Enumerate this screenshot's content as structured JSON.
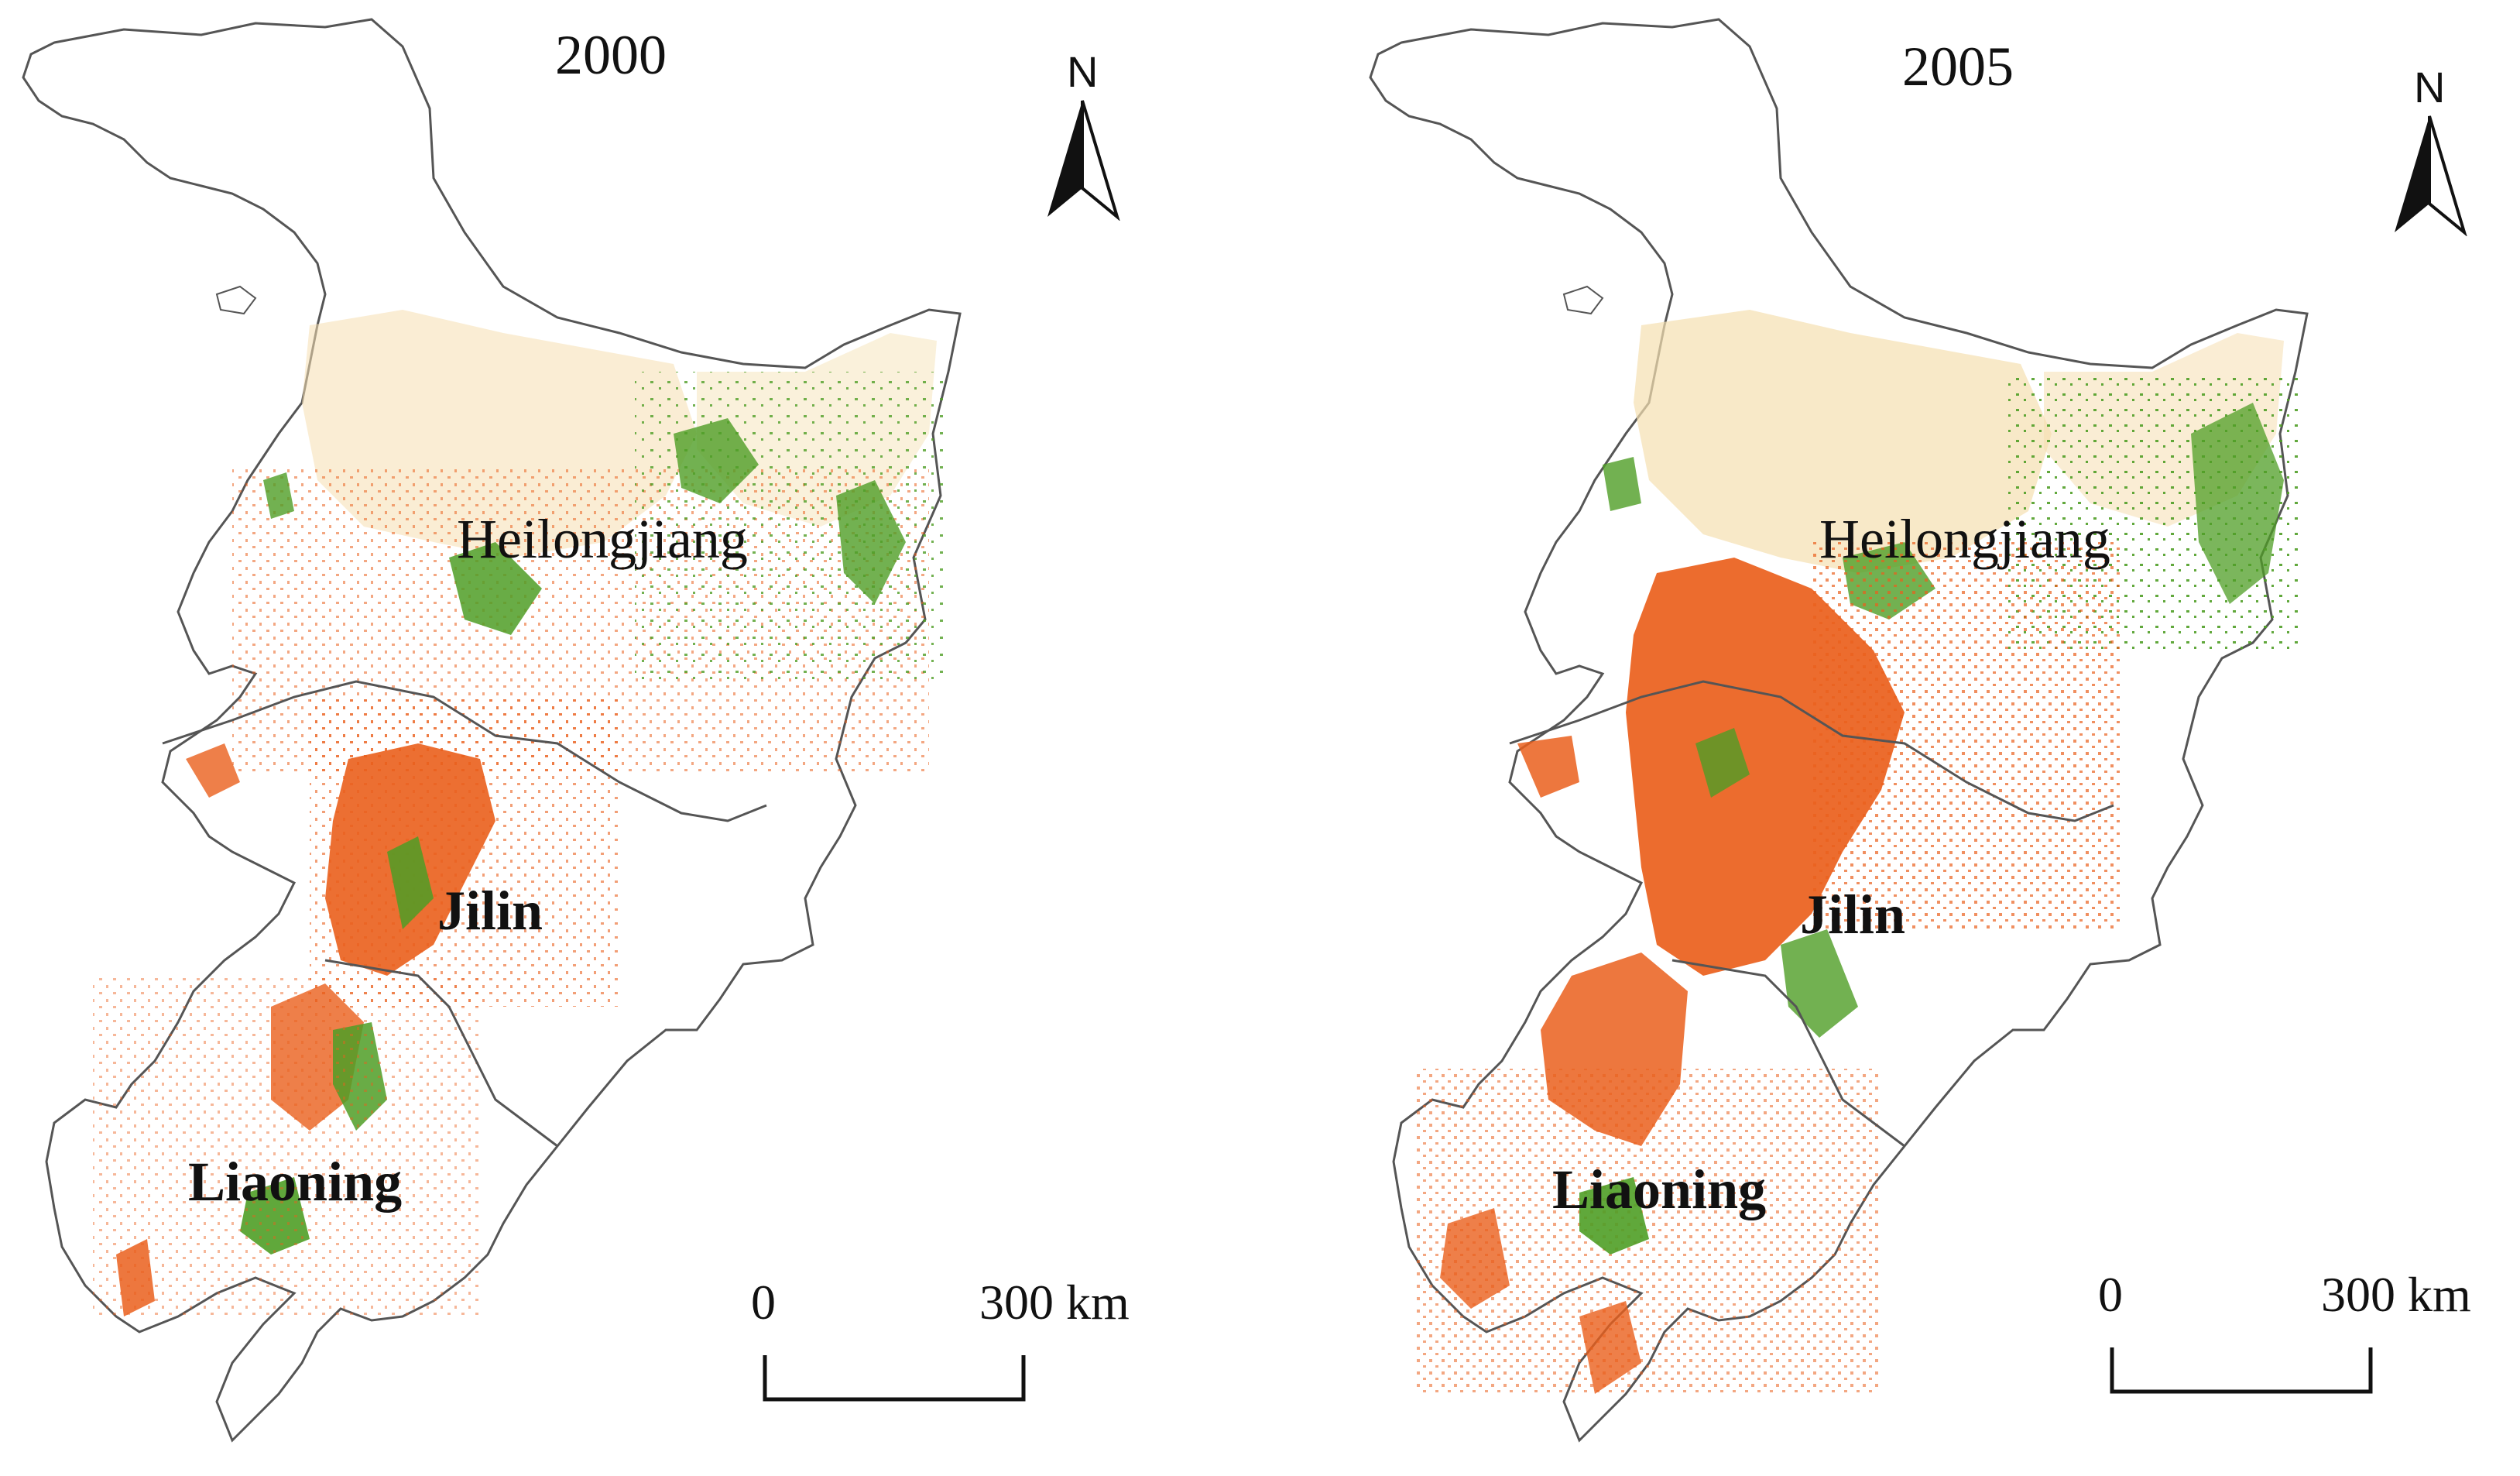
{
  "colors": {
    "cropland_change": "#ea5f1c",
    "forest_green": "#4f9e26",
    "light_beige": "#f5dfb0",
    "boundary": "#555555"
  },
  "maps": [
    {
      "year": "2000",
      "labels": {
        "heilongjiang": "Heilongjiang",
        "jilin": "Jilin",
        "liaoning": "Liaoning"
      },
      "north": "N",
      "scale": {
        "zero": "0",
        "end": "300 km"
      }
    },
    {
      "year": "2005",
      "labels": {
        "heilongjiang": "Heilongjiang",
        "jilin": "Jilin",
        "liaoning": "Liaoning"
      },
      "north": "N",
      "scale": {
        "zero": "0",
        "end": "300 km"
      }
    }
  ]
}
